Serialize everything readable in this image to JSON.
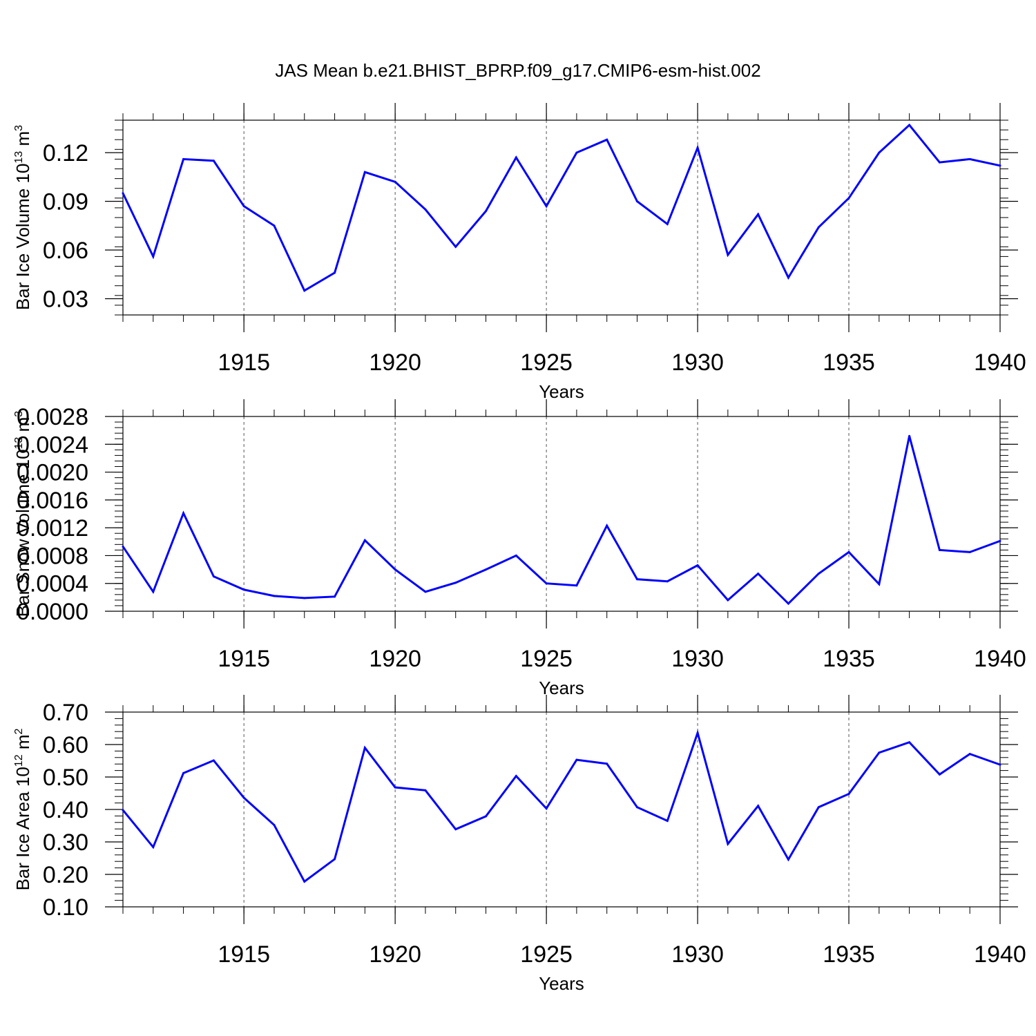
{
  "figure_title": "JAS Mean b.e21.BHIST_BPRP.f09_g17.CMIP6-esm-hist.002",
  "colors": {
    "series": "#0000ff",
    "axis": "#000000",
    "grid": "#555555"
  },
  "chart_data": [
    {
      "type": "line",
      "title": "",
      "xlabel": "Years",
      "ylabel": {
        "prefix": "Bar Ice Volume 10",
        "exp1": "13",
        "mid": " m",
        "exp2": "3",
        "suffix": ""
      },
      "xlim": [
        1911,
        1940
      ],
      "ylim": [
        0.02,
        0.14
      ],
      "x_tick_labels": [
        "1915",
        "1920",
        "1925",
        "1930",
        "1935",
        "1940"
      ],
      "y_tick_labels": [
        "0.03",
        "0.06",
        "0.09",
        "0.12"
      ],
      "x": [
        1911,
        1912,
        1913,
        1914,
        1915,
        1916,
        1917,
        1918,
        1919,
        1920,
        1921,
        1922,
        1923,
        1924,
        1925,
        1926,
        1927,
        1928,
        1929,
        1930,
        1931,
        1932,
        1933,
        1934,
        1935,
        1936,
        1937,
        1938,
        1939,
        1940
      ],
      "series": [
        {
          "name": "Bar Ice Volume",
          "values": [
            0.095,
            0.056,
            0.116,
            0.115,
            0.087,
            0.075,
            0.035,
            0.046,
            0.108,
            0.102,
            0.085,
            0.062,
            0.084,
            0.117,
            0.087,
            0.12,
            0.128,
            0.09,
            0.076,
            0.123,
            0.057,
            0.082,
            0.043,
            0.074,
            0.092,
            0.12,
            0.137,
            0.114,
            0.116,
            0.112
          ]
        }
      ]
    },
    {
      "type": "line",
      "title": "",
      "xlabel": "Years",
      "ylabel": {
        "prefix": "Bar Snow Volume 10",
        "exp1": "13",
        "mid": " m",
        "exp2": "3",
        "suffix": ""
      },
      "xlim": [
        1911,
        1940
      ],
      "ylim": [
        0.0,
        0.0028
      ],
      "x_tick_labels": [
        "1915",
        "1920",
        "1925",
        "1930",
        "1935",
        "1940"
      ],
      "y_tick_labels": [
        "0.0000",
        "0.0004",
        "0.0008",
        "0.0012",
        "0.0016",
        "0.0020",
        "0.0024",
        "0.0028"
      ],
      "x": [
        1911,
        1912,
        1913,
        1914,
        1915,
        1916,
        1917,
        1918,
        1919,
        1920,
        1921,
        1922,
        1923,
        1924,
        1925,
        1926,
        1927,
        1928,
        1929,
        1930,
        1931,
        1932,
        1933,
        1934,
        1935,
        1936,
        1937,
        1938,
        1939,
        1940
      ],
      "series": [
        {
          "name": "Bar Snow Volume",
          "values": [
            0.00093,
            0.00028,
            0.00141,
            0.0005,
            0.00031,
            0.00022,
            0.00019,
            0.00021,
            0.00102,
            0.0006,
            0.00028,
            0.00041,
            0.0006,
            0.0008,
            0.0004,
            0.00037,
            0.00123,
            0.00046,
            0.00043,
            0.00066,
            0.00016,
            0.00054,
            0.00011,
            0.00054,
            0.00085,
            0.00039,
            0.00252,
            0.00088,
            0.00085,
            0.00101
          ]
        }
      ]
    },
    {
      "type": "line",
      "title": "",
      "xlabel": "Years",
      "ylabel": {
        "prefix": "Bar Ice Area 10",
        "exp1": "12",
        "mid": " m",
        "exp2": "2",
        "suffix": ""
      },
      "xlim": [
        1911,
        1940
      ],
      "ylim": [
        0.1,
        0.7
      ],
      "x_tick_labels": [
        "1915",
        "1920",
        "1925",
        "1930",
        "1935",
        "1940"
      ],
      "y_tick_labels": [
        "0.10",
        "0.20",
        "0.30",
        "0.40",
        "0.50",
        "0.60",
        "0.70"
      ],
      "x": [
        1911,
        1912,
        1913,
        1914,
        1915,
        1916,
        1917,
        1918,
        1919,
        1920,
        1921,
        1922,
        1923,
        1924,
        1925,
        1926,
        1927,
        1928,
        1929,
        1930,
        1931,
        1932,
        1933,
        1934,
        1935,
        1936,
        1937,
        1938,
        1939,
        1940
      ],
      "series": [
        {
          "name": "Bar Ice Area",
          "values": [
            0.398,
            0.284,
            0.512,
            0.551,
            0.436,
            0.352,
            0.178,
            0.247,
            0.59,
            0.468,
            0.459,
            0.339,
            0.379,
            0.503,
            0.403,
            0.553,
            0.541,
            0.407,
            0.365,
            0.636,
            0.294,
            0.411,
            0.246,
            0.407,
            0.448,
            0.575,
            0.607,
            0.508,
            0.571,
            0.538
          ]
        }
      ]
    }
  ]
}
